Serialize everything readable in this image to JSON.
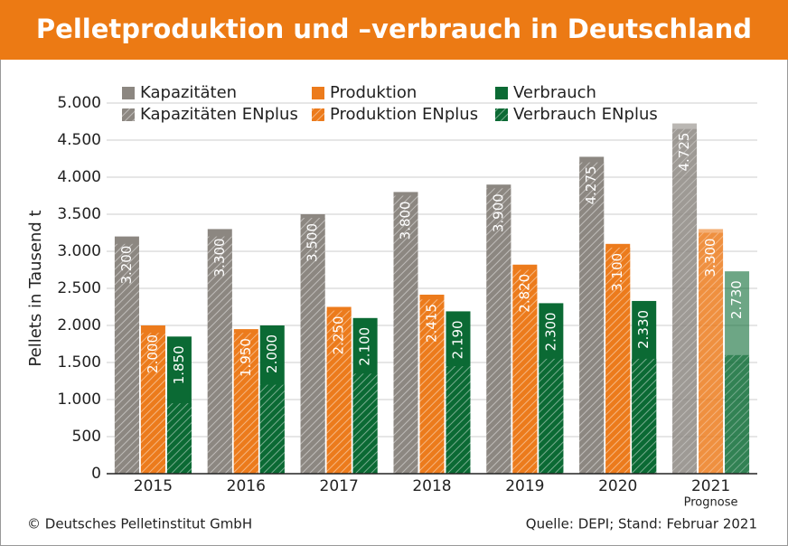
{
  "chart_data": {
    "type": "bar",
    "title": "Pelletproduktion und –verbrauch in Deutschland",
    "y_label": "Pellets in Tausend t",
    "categories": [
      "2015",
      "2016",
      "2017",
      "2018",
      "2019",
      "2020",
      "2021"
    ],
    "category_notes": [
      null,
      null,
      null,
      null,
      null,
      null,
      "Prognose"
    ],
    "series": [
      {
        "name": "Kapazitäten",
        "color": "#8c8781",
        "values": [
          3200,
          3300,
          3500,
          3800,
          3900,
          4275,
          4725
        ],
        "value_labels": [
          "3.200",
          "3.300",
          "3.500",
          "3.800",
          "3.900",
          "4.275",
          "4.725"
        ]
      },
      {
        "name": "Produktion",
        "color": "#ec7b1c",
        "values": [
          2000,
          1950,
          2250,
          2415,
          2820,
          3100,
          3300
        ],
        "value_labels": [
          "2.000",
          "1.950",
          "2.250",
          "2.415",
          "2.820",
          "3.100",
          "3.300"
        ]
      },
      {
        "name": "Verbrauch",
        "color": "#0b6a34",
        "values": [
          1850,
          2000,
          2100,
          2190,
          2300,
          2330,
          2730
        ],
        "value_labels": [
          "1.850",
          "2.000",
          "2.100",
          "2.190",
          "2.300",
          "2.330",
          "2.730"
        ]
      },
      {
        "name": "Kapazitäten ENplus",
        "color": "#8c8781",
        "pattern": "hatch",
        "values": [
          3100,
          3200,
          3450,
          3750,
          3850,
          4200,
          4650
        ]
      },
      {
        "name": "Produktion ENplus",
        "color": "#ec7b1c",
        "pattern": "hatch",
        "values": [
          1900,
          1900,
          2200,
          2350,
          2750,
          3050,
          3250
        ]
      },
      {
        "name": "Verbrauch ENplus",
        "color": "#0b6a34",
        "pattern": "hatch",
        "values": [
          950,
          1200,
          1350,
          1450,
          1550,
          1550,
          1600
        ]
      }
    ],
    "ylim": [
      0,
      5000
    ],
    "yticks": [
      0,
      500,
      {
        "value": 1000,
        "label": "1.000"
      },
      {
        "value": 1500,
        "label": "1.500"
      },
      {
        "value": 2000,
        "label": "2.000"
      },
      {
        "value": 2500,
        "label": "2.500"
      },
      {
        "value": 3000,
        "label": "3.000"
      },
      {
        "value": 3500,
        "label": "3.500"
      },
      {
        "value": 4000,
        "label": "4.000"
      },
      {
        "value": 4500,
        "label": "4.500"
      },
      {
        "value": 5000,
        "label": "5.000"
      }
    ],
    "grid": true,
    "footer_left": "© Deutsches Pelletinstitut GmbH",
    "footer_right": "Quelle: DEPI; Stand: Februar 2021"
  }
}
